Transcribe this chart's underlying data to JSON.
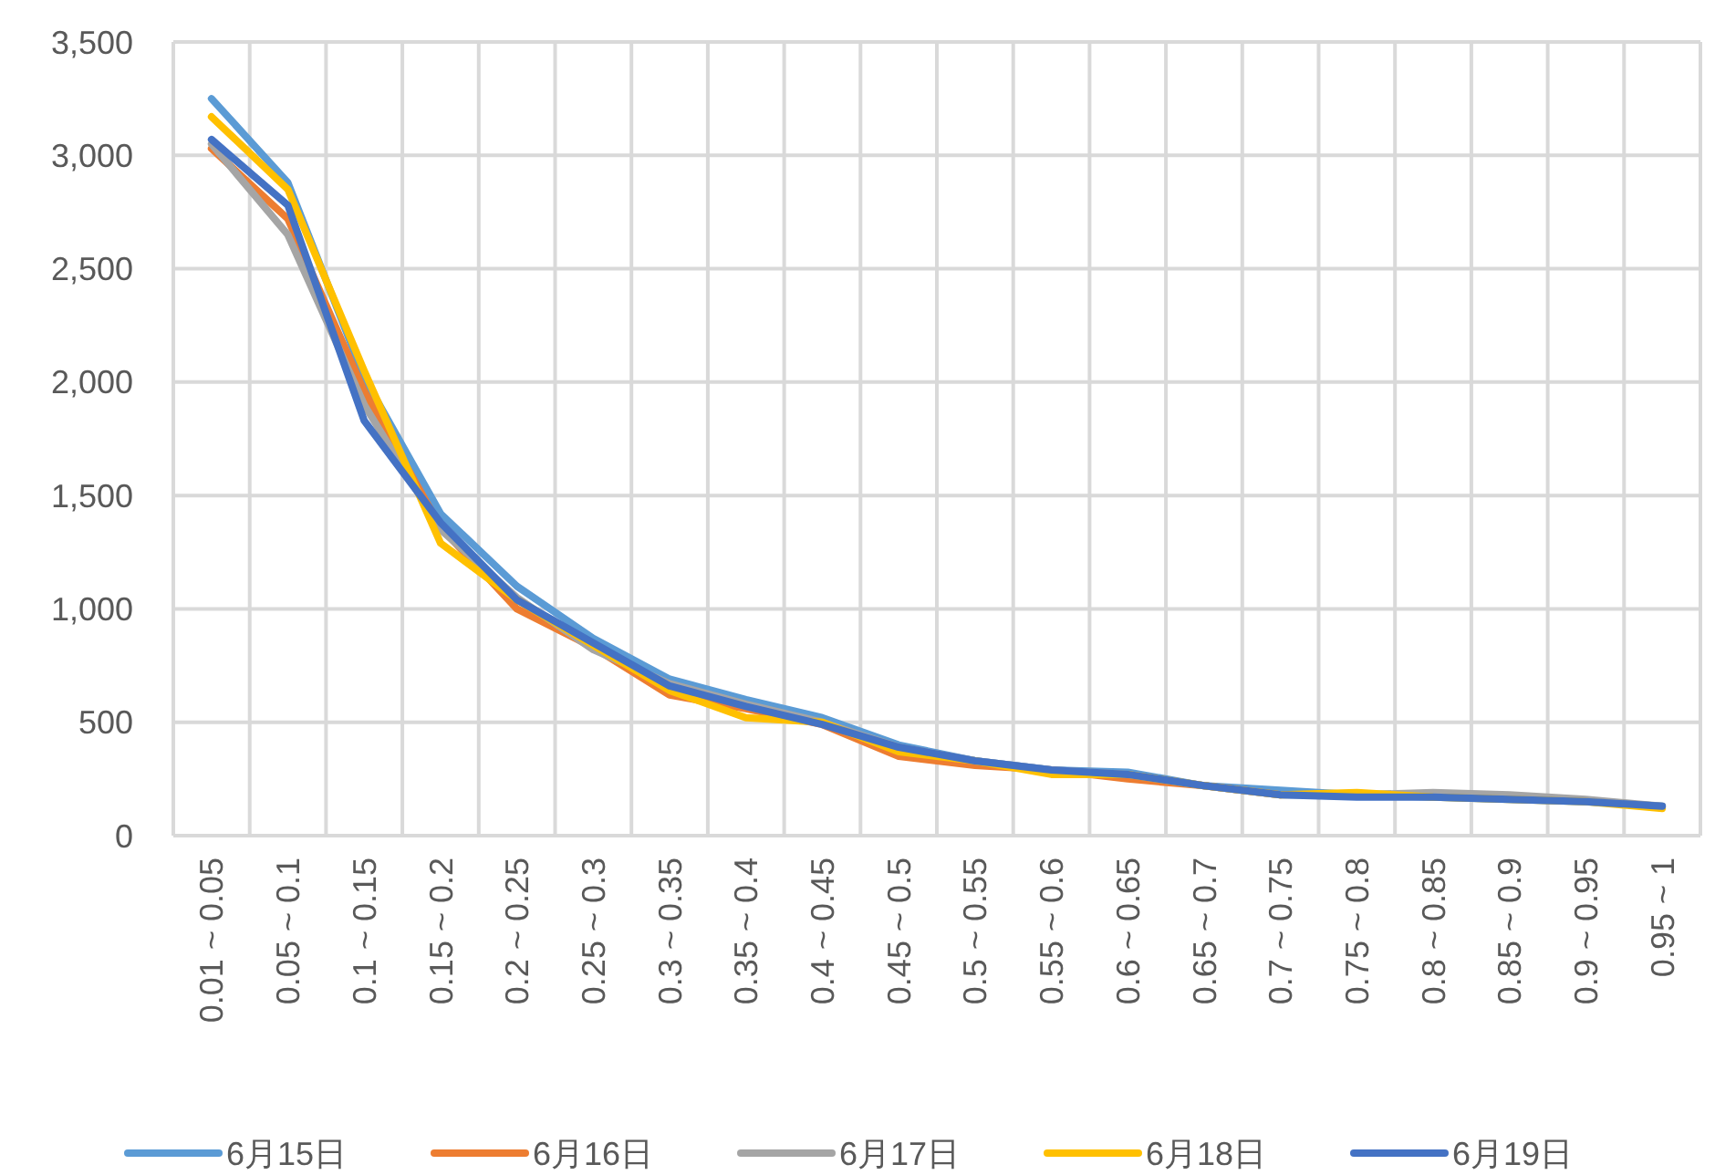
{
  "chart_data": {
    "type": "line",
    "categories": [
      "0.01 ~ 0.05",
      "0.05 ~ 0.1",
      "0.1 ~ 0.15",
      "0.15 ~ 0.2",
      "0.2 ~ 0.25",
      "0.25 ~ 0.3",
      "0.3 ~ 0.35",
      "0.35 ~ 0.4",
      "0.4 ~ 0.45",
      "0.45 ~ 0.5",
      "0.5 ~ 0.55",
      "0.55 ~ 0.6",
      "0.6 ~ 0.65",
      "0.65 ~ 0.7",
      "0.7 ~ 0.75",
      "0.75 ~ 0.8",
      "0.8 ~ 0.85",
      "0.85 ~ 0.9",
      "0.9 ~ 0.95",
      "0.95 ~ 1"
    ],
    "series": [
      {
        "name": "6月15日",
        "color": "#5b9bd5",
        "values": [
          3250,
          2880,
          2020,
          1420,
          1100,
          870,
          690,
          600,
          520,
          400,
          330,
          290,
          280,
          220,
          200,
          180,
          170,
          160,
          150,
          130
        ]
      },
      {
        "name": "6月16日",
        "color": "#ed7d31",
        "values": [
          3030,
          2720,
          1960,
          1360,
          1000,
          830,
          620,
          560,
          490,
          350,
          310,
          290,
          250,
          220,
          180,
          null,
          null,
          null,
          null,
          null
        ]
      },
      {
        "name": "6月17日",
        "color": "#a5a5a5",
        "values": [
          3050,
          2650,
          1900,
          1350,
          1050,
          820,
          670,
          580,
          500,
          390,
          330,
          290,
          270,
          220,
          180,
          180,
          190,
          180,
          160,
          130
        ]
      },
      {
        "name": "6月18日",
        "color": "#ffc000",
        "values": [
          3170,
          2850,
          2050,
          1290,
          1040,
          840,
          640,
          520,
          500,
          370,
          330,
          270,
          270,
          220,
          180,
          190,
          170,
          160,
          150,
          120
        ]
      },
      {
        "name": "6月19日",
        "color": "#4472c4",
        "values": [
          3070,
          2780,
          1830,
          1380,
          1040,
          850,
          660,
          570,
          490,
          390,
          330,
          290,
          270,
          220,
          180,
          170,
          170,
          160,
          150,
          130
        ]
      }
    ],
    "ylim": [
      0,
      3500
    ],
    "yticks": [
      {
        "value": 0,
        "label": "0"
      },
      {
        "value": 500,
        "label": "500"
      },
      {
        "value": 1000,
        "label": "1,000"
      },
      {
        "value": 1500,
        "label": "1,500"
      },
      {
        "value": 2000,
        "label": "2,000"
      },
      {
        "value": 2500,
        "label": "2,500"
      },
      {
        "value": 3000,
        "label": "3,000"
      },
      {
        "value": 3500,
        "label": "3,500"
      }
    ],
    "grid": true,
    "legend": "bottom",
    "marker": "none",
    "line_style": "solid"
  }
}
